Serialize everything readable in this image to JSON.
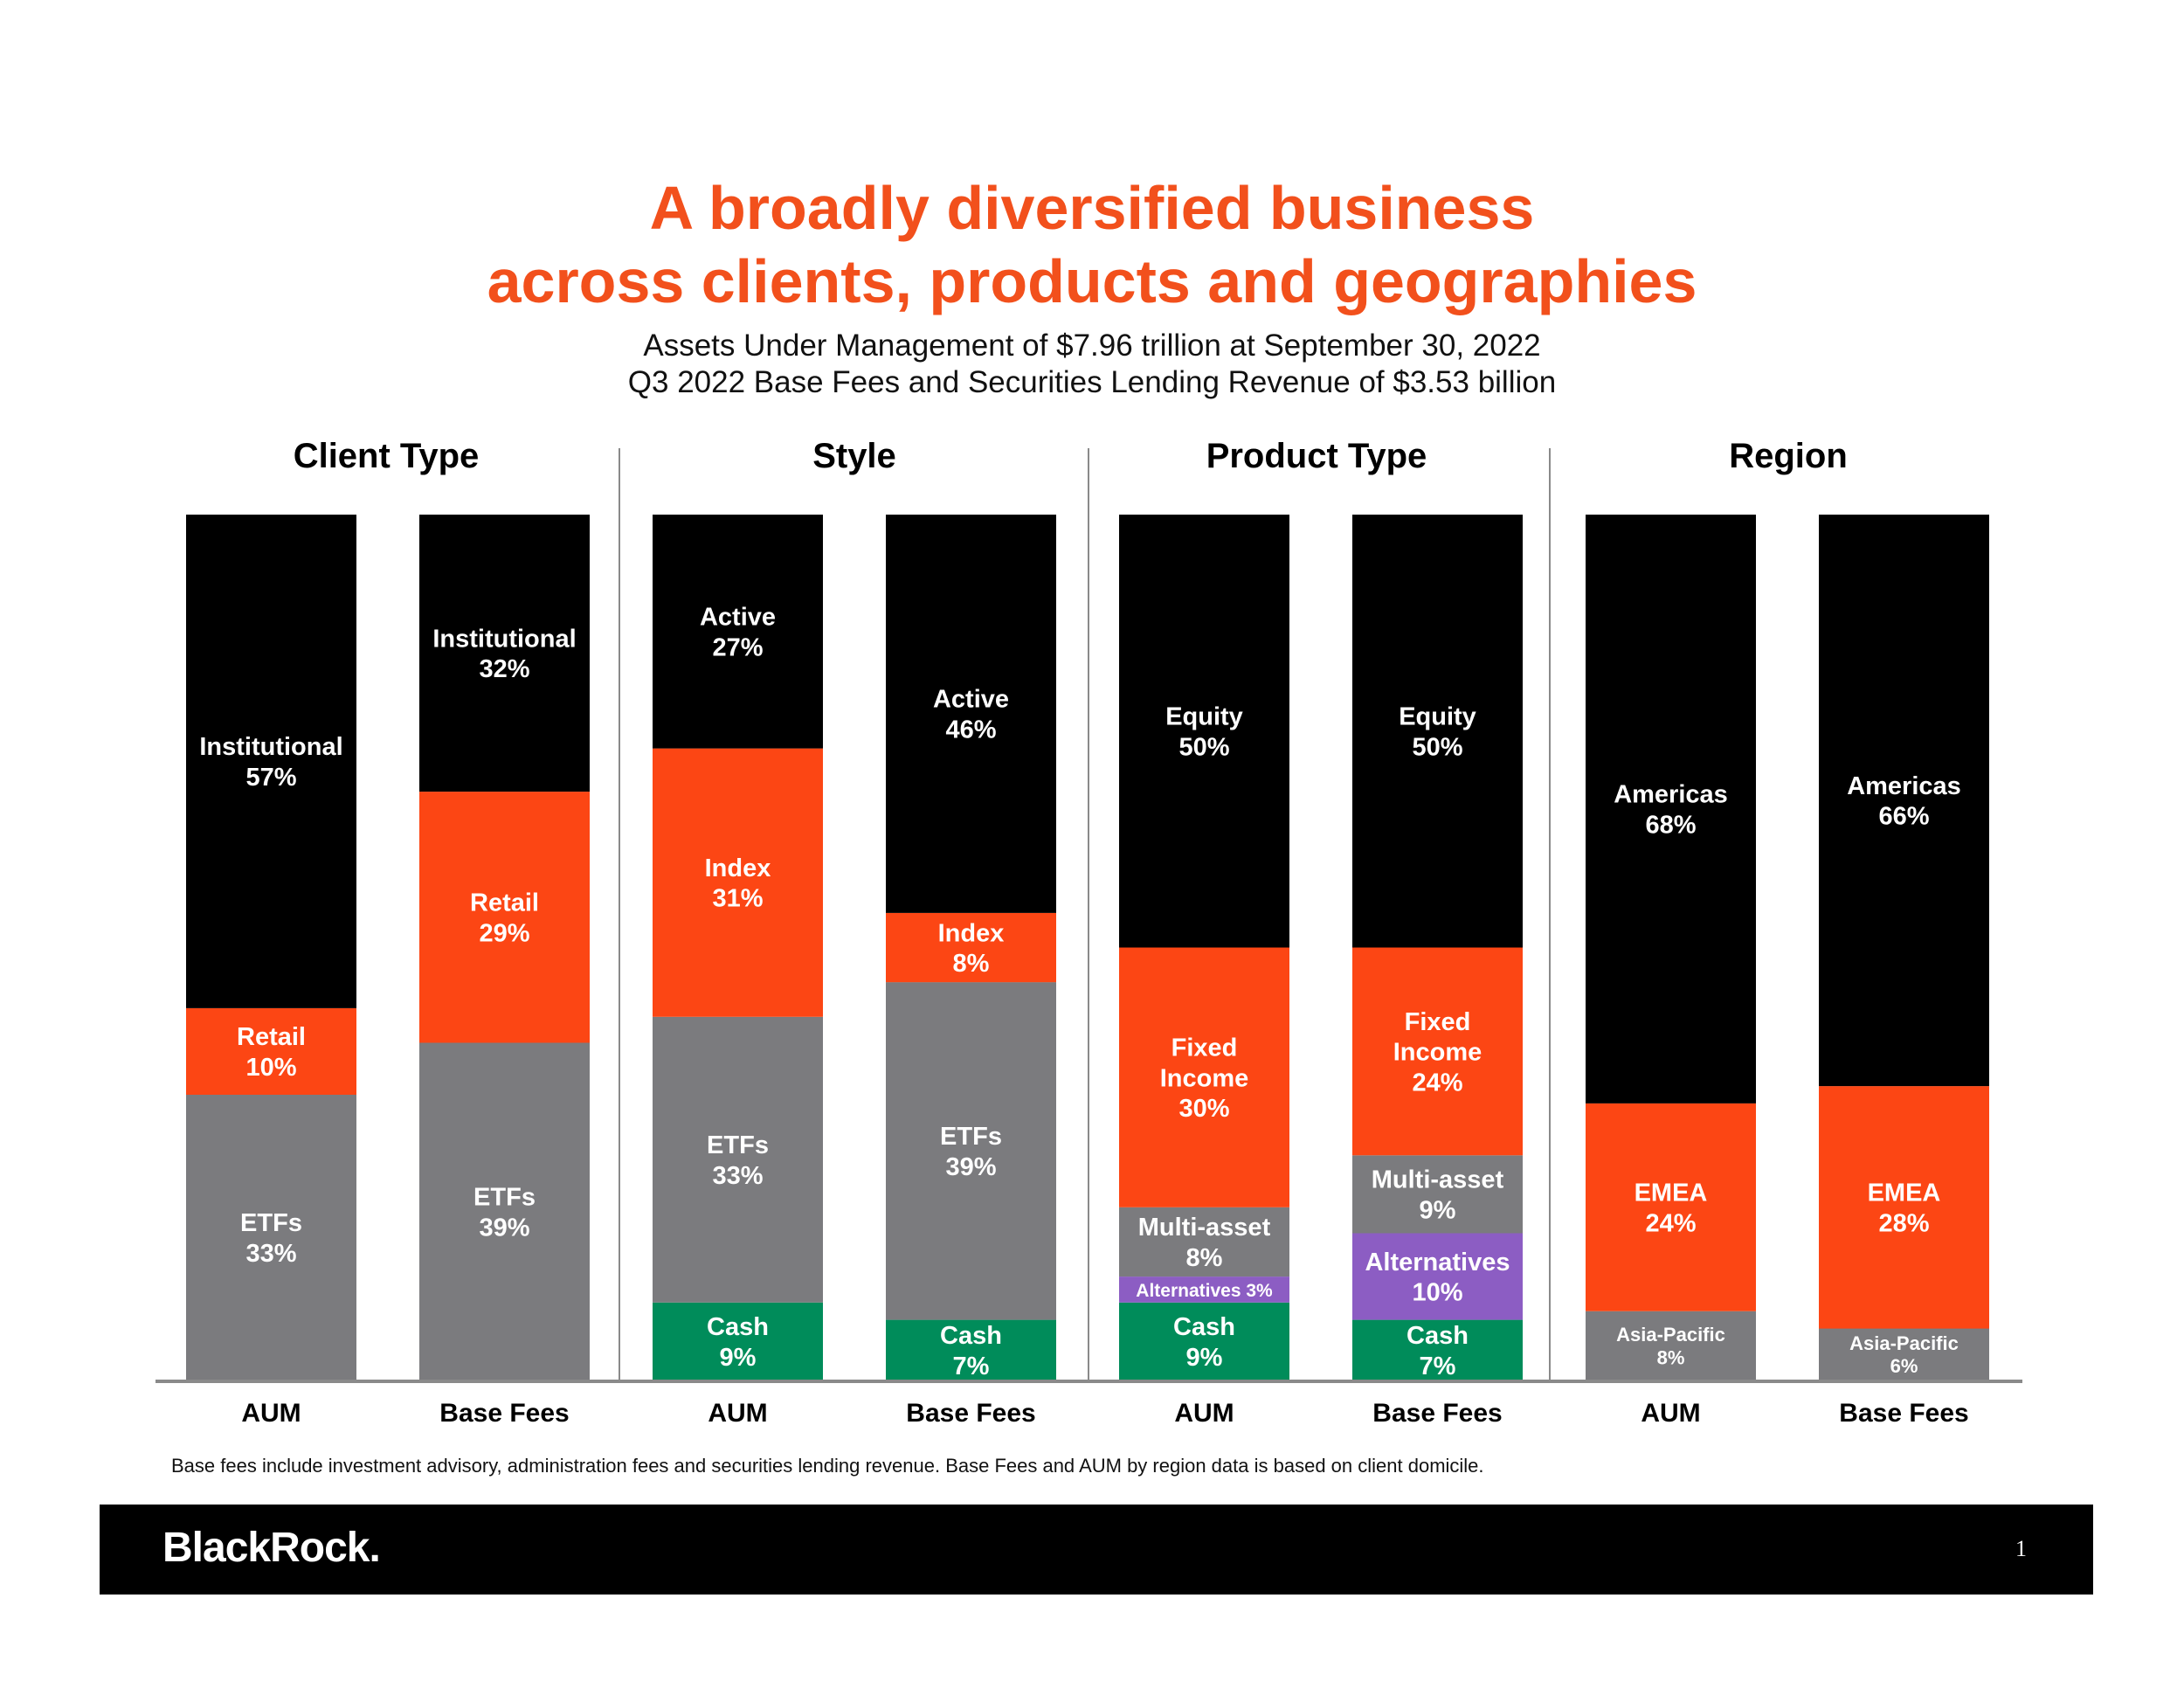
{
  "header": {
    "title_line1": "A broadly diversified business",
    "title_line2": "across clients, products and geographies",
    "subtitle_line1": "Assets Under Management of $7.96 trillion at September 30, 2022",
    "subtitle_line2": "Q3 2022 Base Fees and Securities Lending Revenue of $3.53 billion"
  },
  "colors": {
    "black": "#000000",
    "orange": "#fc4614",
    "gray": "#7b7b7e",
    "green": "#008c5a",
    "purple": "#8c5dc3",
    "accent_title": "#f2501c"
  },
  "chart_data": {
    "type": "bar",
    "stacked": true,
    "percent": true,
    "groups": [
      {
        "title": "Client Type",
        "bars": [
          {
            "label": "AUM",
            "segments": [
              {
                "name": "ETFs",
                "value": 33,
                "color": "gray"
              },
              {
                "name": "Retail",
                "value": 10,
                "color": "orange"
              },
              {
                "name": "Institutional",
                "value": 57,
                "color": "black"
              }
            ]
          },
          {
            "label": "Base Fees",
            "segments": [
              {
                "name": "ETFs",
                "value": 39,
                "color": "gray"
              },
              {
                "name": "Retail",
                "value": 29,
                "color": "orange"
              },
              {
                "name": "Institutional",
                "value": 32,
                "color": "black"
              }
            ]
          }
        ]
      },
      {
        "title": "Style",
        "bars": [
          {
            "label": "AUM",
            "segments": [
              {
                "name": "Cash",
                "value": 9,
                "color": "green"
              },
              {
                "name": "ETFs",
                "value": 33,
                "color": "gray"
              },
              {
                "name": "Index",
                "value": 31,
                "color": "orange"
              },
              {
                "name": "Active",
                "value": 27,
                "color": "black"
              }
            ]
          },
          {
            "label": "Base Fees",
            "segments": [
              {
                "name": "Cash",
                "value": 7,
                "color": "green"
              },
              {
                "name": "ETFs",
                "value": 39,
                "color": "gray"
              },
              {
                "name": "Index",
                "value": 8,
                "color": "orange"
              },
              {
                "name": "Active",
                "value": 46,
                "color": "black"
              }
            ]
          }
        ]
      },
      {
        "title": "Product Type",
        "bars": [
          {
            "label": "AUM",
            "segments": [
              {
                "name": "Cash",
                "value": 9,
                "color": "green"
              },
              {
                "name": "Alternatives",
                "value": 3,
                "color": "purple",
                "inline": true
              },
              {
                "name": "Multi-asset",
                "value": 8,
                "color": "gray"
              },
              {
                "name": "Fixed Income",
                "value": 30,
                "color": "orange"
              },
              {
                "name": "Equity",
                "value": 50,
                "color": "black"
              }
            ]
          },
          {
            "label": "Base Fees",
            "segments": [
              {
                "name": "Cash",
                "value": 7,
                "color": "green"
              },
              {
                "name": "Alternatives",
                "value": 10,
                "color": "purple"
              },
              {
                "name": "Multi-asset",
                "value": 9,
                "color": "gray"
              },
              {
                "name": "Fixed Income",
                "value": 24,
                "color": "orange"
              },
              {
                "name": "Equity",
                "value": 50,
                "color": "black"
              }
            ]
          }
        ]
      },
      {
        "title": "Region",
        "bars": [
          {
            "label": "AUM",
            "segments": [
              {
                "name": "Asia-Pacific",
                "value": 8,
                "color": "gray",
                "small": true
              },
              {
                "name": "EMEA",
                "value": 24,
                "color": "orange"
              },
              {
                "name": "Americas",
                "value": 68,
                "color": "black"
              }
            ]
          },
          {
            "label": "Base Fees",
            "segments": [
              {
                "name": "Asia-Pacific",
                "value": 6,
                "color": "gray",
                "small": true
              },
              {
                "name": "EMEA",
                "value": 28,
                "color": "orange"
              },
              {
                "name": "Americas",
                "value": 66,
                "color": "black"
              }
            ]
          }
        ]
      }
    ],
    "ylim": [
      0,
      100
    ]
  },
  "footnote": "Base fees include investment advisory, administration fees and securities lending revenue. Base Fees and AUM by region data is based on client domicile.",
  "footer": {
    "logo": "BlackRock.",
    "page_number": "1"
  }
}
